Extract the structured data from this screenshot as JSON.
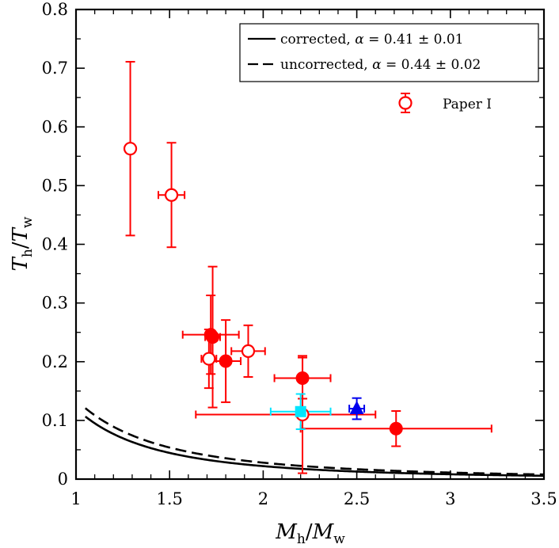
{
  "chart_data": {
    "type": "scatter",
    "title": "",
    "xlabel": "M_h / M_w",
    "ylabel": "T_h / T_w",
    "xlim": [
      1,
      3.5
    ],
    "ylim": [
      0,
      0.8
    ],
    "x_ticks": [
      "1",
      "1.5",
      "2",
      "2.5",
      "3",
      "3.5"
    ],
    "y_ticks": [
      "0",
      "0.1",
      "0.2",
      "0.3",
      "0.4",
      "0.5",
      "0.6",
      "0.7",
      "0.8"
    ],
    "legend_position": "top-right",
    "curves": [
      {
        "name": "corrected, α = 0.41 ± 0.01",
        "style": "solid",
        "alpha": 0.41,
        "coef": 0.12,
        "exponent": -2.44,
        "color": "#000000"
      },
      {
        "name": "uncorrected, α = 0.44 ± 0.02",
        "style": "dashed",
        "alpha": 0.44,
        "coef": 0.135,
        "exponent": -2.27,
        "color": "#000000"
      }
    ],
    "series": [
      {
        "name": "Paper I",
        "marker": "open-circle",
        "color": "#ff0000",
        "points": [
          {
            "x": 1.29,
            "y": 0.563,
            "xerr": [
              0.02,
              0.02
            ],
            "yerr": [
              0.148,
              0.148
            ]
          },
          {
            "x": 1.51,
            "y": 0.484,
            "xerr": [
              0.07,
              0.07
            ],
            "yerr": [
              0.089,
              0.089
            ]
          },
          {
            "x": 1.71,
            "y": 0.205,
            "xerr": [
              0.04,
              0.04
            ],
            "yerr": [
              0.05,
              0.05
            ]
          },
          {
            "x": 1.92,
            "y": 0.218,
            "xerr": [
              0.09,
              0.09
            ],
            "yerr": [
              0.044,
              0.044
            ]
          },
          {
            "x": 2.21,
            "y": 0.11,
            "xerr": [
              0.57,
              0.39
            ],
            "yerr": [
              0.1,
              0.1
            ]
          }
        ]
      },
      {
        "name": "filled",
        "marker": "filled-circle",
        "color": "#ff0000",
        "points": [
          {
            "x": 1.72,
            "y": 0.246,
            "xerr": [
              0.15,
              0.15
            ],
            "yerr": [
              0.067,
              0.067
            ]
          },
          {
            "x": 1.73,
            "y": 0.242,
            "xerr": [
              0.04,
              0.04
            ],
            "yerr": [
              0.12,
              0.12
            ]
          },
          {
            "x": 1.8,
            "y": 0.201,
            "xerr": [
              0.08,
              0.08
            ],
            "yerr": [
              0.07,
              0.07
            ]
          },
          {
            "x": 2.21,
            "y": 0.172,
            "xerr": [
              0.15,
              0.15
            ],
            "yerr": [
              0.035,
              0.035
            ]
          },
          {
            "x": 2.71,
            "y": 0.086,
            "xerr": [
              0.51,
              0.51
            ],
            "yerr": [
              0.03,
              0.03
            ]
          }
        ]
      },
      {
        "name": "cyan",
        "marker": "filled-square",
        "color": "#00e5ff",
        "points": [
          {
            "x": 2.2,
            "y": 0.115,
            "xerr": [
              0.16,
              0.16
            ],
            "yerr": [
              0.03,
              0.03
            ]
          }
        ]
      },
      {
        "name": "blue",
        "marker": "filled-triangle",
        "color": "#0000ee",
        "points": [
          {
            "x": 2.5,
            "y": 0.12,
            "xerr": [
              0.04,
              0.04
            ],
            "yerr": [
              0.018,
              0.018
            ]
          }
        ]
      }
    ]
  },
  "legend": {
    "entries": [
      {
        "kind": "solid",
        "prefix": "corrected, ",
        "greek": "α",
        "value": " = 0.41 ± 0.01"
      },
      {
        "kind": "dashed",
        "prefix": "uncorrected, ",
        "greek": "α",
        "value": " = 0.44 ± 0.02"
      }
    ],
    "paper_label": "Paper I"
  },
  "axes": {
    "x_title": {
      "main": "M",
      "sub": "h",
      "sep": "/",
      "main2": "M",
      "sub2": "w"
    },
    "y_title": {
      "main": "T",
      "sub": "h",
      "sep": "/",
      "main2": "T",
      "sub2": "w"
    }
  }
}
